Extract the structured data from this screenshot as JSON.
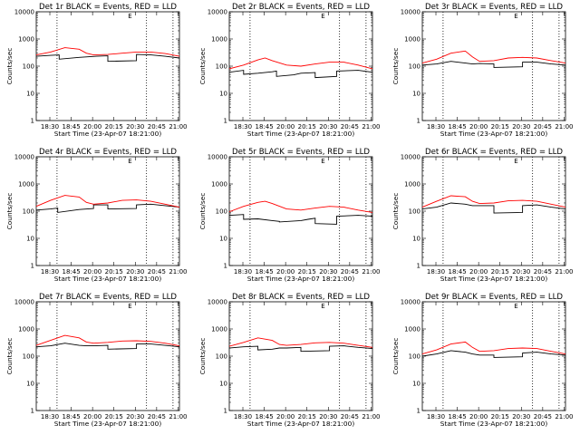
{
  "figure": {
    "xlabel": "Start Time (23-Apr-07 18:21:00)",
    "ylabel": "Counts/sec",
    "legend_glyph": "E",
    "x_ticks": [
      "18:30",
      "18:45",
      "20:00",
      "20:15",
      "20:30",
      "20:45",
      "21:00"
    ],
    "y_ticks": [
      "1",
      "10",
      "100",
      "1000",
      "10000"
    ],
    "ylim": [
      1,
      10000
    ],
    "log_y": true,
    "colors": {
      "events": "#000000",
      "lld": "#ff0000"
    }
  },
  "chart_data": [
    {
      "type": "line",
      "title": "Det 1r BLACK = Events, RED = LLD",
      "dotted": [
        1.45,
        7.7,
        9.55
      ],
      "series": [
        {
          "name": "BLACK = Events",
          "x": [
            0,
            1,
            1.6,
            1.6,
            3,
            4.2,
            5,
            5,
            7,
            7,
            8,
            9,
            10
          ],
          "y": [
            230,
            250,
            260,
            180,
            210,
            230,
            240,
            150,
            160,
            270,
            260,
            230,
            200
          ]
        },
        {
          "name": "RED = LLD",
          "x": [
            0,
            1,
            2,
            3,
            3.5,
            4,
            5,
            6,
            7,
            8,
            9,
            10
          ],
          "y": [
            260,
            330,
            480,
            420,
            300,
            260,
            270,
            300,
            330,
            330,
            290,
            230
          ]
        }
      ]
    },
    {
      "type": "line",
      "title": "Det 2r BLACK = Events, RED = LLD",
      "dotted": [
        1.45,
        7.7,
        9.55
      ],
      "series": [
        {
          "name": "BLACK = Events",
          "x": [
            0,
            1,
            1,
            2,
            3,
            3.3,
            3.3,
            4.5,
            5,
            6,
            6,
            7.5,
            7.5,
            9,
            10
          ],
          "y": [
            60,
            70,
            50,
            55,
            62,
            66,
            42,
            48,
            55,
            58,
            38,
            42,
            66,
            70,
            60
          ]
        },
        {
          "name": "RED = LLD",
          "x": [
            0,
            1,
            2,
            2.5,
            3,
            4,
            5,
            6,
            7,
            8,
            9,
            10
          ],
          "y": [
            80,
            110,
            170,
            200,
            160,
            110,
            100,
            120,
            140,
            140,
            110,
            80
          ]
        }
      ]
    },
    {
      "type": "line",
      "title": "Det 3r BLACK = Events, RED = LLD",
      "dotted": [
        1.45,
        7.7,
        9.55
      ],
      "series": [
        {
          "name": "BLACK = Events",
          "x": [
            0,
            1,
            2,
            3,
            3.5,
            4,
            5,
            5,
            7,
            7,
            8,
            9,
            10
          ],
          "y": [
            110,
            120,
            150,
            130,
            120,
            125,
            120,
            90,
            95,
            140,
            140,
            120,
            110
          ]
        },
        {
          "name": "RED = LLD",
          "x": [
            0,
            1,
            2,
            3,
            3.5,
            4,
            5,
            6,
            7,
            8,
            9,
            10
          ],
          "y": [
            130,
            180,
            300,
            360,
            220,
            150,
            160,
            200,
            210,
            200,
            160,
            130
          ]
        }
      ]
    },
    {
      "type": "line",
      "title": "Det 4r BLACK = Events, RED = LLD",
      "dotted": [
        1.45,
        7.7,
        9.55
      ],
      "series": [
        {
          "name": "BLACK = Events",
          "x": [
            0,
            1,
            1.5,
            1.5,
            3,
            4,
            4,
            5,
            5,
            7,
            7,
            8,
            9,
            10
          ],
          "y": [
            110,
            120,
            130,
            90,
            115,
            125,
            170,
            170,
            120,
            125,
            170,
            180,
            160,
            140
          ]
        },
        {
          "name": "RED = LLD",
          "x": [
            0,
            1,
            2,
            3,
            3.5,
            4,
            5,
            6,
            7,
            8,
            9,
            10
          ],
          "y": [
            150,
            250,
            380,
            330,
            210,
            180,
            200,
            250,
            260,
            230,
            180,
            140
          ]
        }
      ]
    },
    {
      "type": "line",
      "title": "Det 5r BLACK = Events, RED = LLD",
      "dotted": [
        1.45,
        7.7,
        9.55
      ],
      "series": [
        {
          "name": "BLACK = Events",
          "x": [
            0,
            1,
            1,
            2,
            3,
            3.5,
            3.5,
            5,
            5.5,
            6,
            6,
            7.5,
            7.5,
            9,
            10
          ],
          "y": [
            70,
            75,
            50,
            52,
            45,
            42,
            40,
            45,
            50,
            55,
            35,
            33,
            65,
            70,
            65
          ]
        },
        {
          "name": "RED = LLD",
          "x": [
            0,
            1,
            2,
            2.5,
            3,
            4,
            5,
            6,
            7,
            8,
            9,
            10
          ],
          "y": [
            95,
            150,
            210,
            230,
            190,
            120,
            110,
            130,
            150,
            140,
            110,
            90
          ]
        }
      ]
    },
    {
      "type": "line",
      "title": "Det 6r BLACK = Events, RED = LLD",
      "dotted": [
        1.45,
        7.7,
        9.55
      ],
      "series": [
        {
          "name": "BLACK = Events",
          "x": [
            0,
            1,
            2,
            3,
            3.5,
            4,
            5,
            5,
            7,
            7,
            8,
            9,
            10
          ],
          "y": [
            120,
            140,
            200,
            180,
            160,
            160,
            160,
            85,
            90,
            160,
            170,
            140,
            120
          ]
        },
        {
          "name": "RED = LLD",
          "x": [
            0,
            1,
            2,
            3,
            3.5,
            4,
            5,
            6,
            7,
            8,
            9,
            10
          ],
          "y": [
            140,
            230,
            370,
            340,
            230,
            190,
            200,
            240,
            250,
            230,
            180,
            140
          ]
        }
      ]
    },
    {
      "type": "line",
      "title": "Det 7r BLACK = Events, RED = LLD",
      "dotted": [
        1.45,
        7.7,
        9.55
      ],
      "series": [
        {
          "name": "BLACK = Events",
          "x": [
            0,
            1,
            2,
            3,
            3.5,
            4,
            5,
            5,
            7,
            7,
            8,
            9,
            10
          ],
          "y": [
            220,
            240,
            300,
            250,
            240,
            240,
            250,
            180,
            190,
            280,
            280,
            250,
            220
          ]
        },
        {
          "name": "RED = LLD",
          "x": [
            0,
            1,
            2,
            3,
            3.5,
            4,
            5,
            6,
            7,
            8,
            9,
            10
          ],
          "y": [
            250,
            380,
            580,
            470,
            330,
            300,
            320,
            360,
            370,
            350,
            300,
            240
          ]
        }
      ]
    },
    {
      "type": "line",
      "title": "Det 8r BLACK = Events, RED = LLD",
      "dotted": [
        1.45,
        7.7,
        9.55
      ],
      "series": [
        {
          "name": "BLACK = Events",
          "x": [
            0,
            1,
            2,
            2,
            3,
            3.5,
            4,
            5,
            5,
            7,
            7,
            8,
            9,
            10
          ],
          "y": [
            200,
            220,
            230,
            170,
            180,
            200,
            200,
            210,
            150,
            160,
            230,
            240,
            210,
            190
          ]
        },
        {
          "name": "RED = LLD",
          "x": [
            0,
            1,
            2,
            3,
            3.5,
            4,
            5,
            6,
            7,
            8,
            9,
            10
          ],
          "y": [
            230,
            320,
            470,
            380,
            270,
            250,
            270,
            310,
            320,
            300,
            250,
            210
          ]
        }
      ]
    },
    {
      "type": "line",
      "title": "Det 9r BLACK = Events, RED = LLD",
      "dotted": [
        1.45,
        7.7,
        9.55
      ],
      "series": [
        {
          "name": "BLACK = Events",
          "x": [
            0,
            1,
            2,
            3,
            3.5,
            4,
            5,
            5,
            7,
            7,
            8,
            9,
            10
          ],
          "y": [
            100,
            120,
            160,
            140,
            120,
            110,
            110,
            90,
            95,
            130,
            140,
            120,
            110
          ]
        },
        {
          "name": "RED = LLD",
          "x": [
            0,
            1,
            2,
            3,
            3.5,
            4,
            5,
            6,
            7,
            8,
            9,
            10
          ],
          "y": [
            120,
            170,
            280,
            330,
            210,
            150,
            160,
            190,
            200,
            190,
            150,
            120
          ]
        }
      ]
    }
  ]
}
